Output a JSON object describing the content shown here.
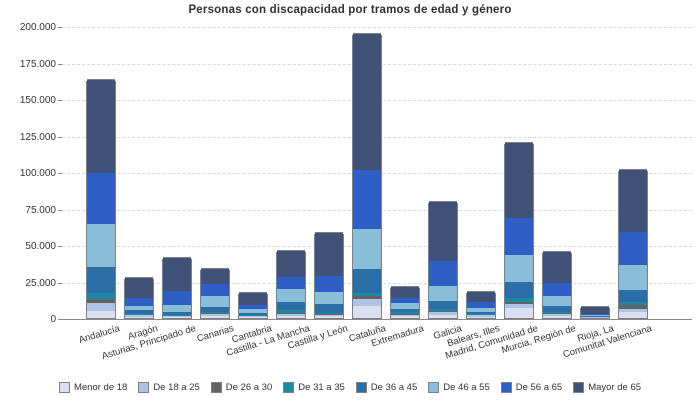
{
  "title": "Personas con discapacidad por tramos de edad y género",
  "chart_data": {
    "type": "bar",
    "stacked": true,
    "title": "Personas con discapacidad por tramos de edad y género",
    "categories": [
      "Andalucía",
      "Aragón",
      "Asturias, Principado de",
      "Canarias",
      "Cantabria",
      "Castilla - La Mancha",
      "Castilla y León",
      "Cataluña",
      "Extremadura",
      "Galicia",
      "Balears, Illes",
      "Madrid, Comunidad de",
      "Murcia, Región de",
      "Rioja, La",
      "Comunitat Valenciana"
    ],
    "series": [
      {
        "name": "Menor de 18",
        "color": "#dbdff1",
        "values": [
          4800,
          1000,
          700,
          1700,
          700,
          1500,
          1200,
          8000,
          1200,
          2100,
          1000,
          7100,
          1400,
          300,
          3900
        ]
      },
      {
        "name": "De 18 a 25",
        "color": "#afc4e4",
        "values": [
          5500,
          1000,
          500,
          1300,
          500,
          1500,
          1000,
          5000,
          1000,
          1700,
          800,
          2700,
          1300,
          300,
          2300
        ]
      },
      {
        "name": "De 26 a 30",
        "color": "#636363",
        "values": [
          2700,
          400,
          300,
          500,
          300,
          700,
          400,
          1900,
          500,
          1000,
          300,
          1400,
          600,
          150,
          2700
        ]
      },
      {
        "name": "De 31 a 35",
        "color": "#1e87a5",
        "values": [
          4100,
          600,
          400,
          900,
          400,
          2000,
          600,
          2300,
          1400,
          1100,
          400,
          2300,
          1000,
          150,
          1900
        ]
      },
      {
        "name": "De 36 a 45",
        "color": "#2b6da5",
        "values": [
          17600,
          2400,
          2300,
          3400,
          1700,
          5500,
          6400,
          16400,
          2100,
          5900,
          1400,
          11400,
          4100,
          400,
          8600
        ]
      },
      {
        "name": "De 46 a 55",
        "color": "#8abdd7",
        "values": [
          29900,
          3100,
          5000,
          7300,
          2300,
          8700,
          8400,
          27400,
          3800,
          10100,
          3200,
          18300,
          6500,
          500,
          16900
        ]
      },
      {
        "name": "De 56 a 65",
        "color": "#2f5ec4",
        "values": [
          34900,
          5100,
          9100,
          8000,
          2700,
          8000,
          10600,
          40600,
          3700,
          16900,
          4100,
          25100,
          9100,
          700,
          22400
        ]
      },
      {
        "name": "Mayor de 65",
        "color": "#405277",
        "values": [
          63800,
          14000,
          22800,
          10200,
          8500,
          17800,
          29400,
          93000,
          7300,
          40600,
          6800,
          51600,
          21000,
          4800,
          42400
        ]
      }
    ],
    "ylim": [
      0,
      200000
    ],
    "ytick_step": 25000,
    "ytick_labels": [
      "0",
      "25.000",
      "50.000",
      "75.000",
      "100.000",
      "125.000",
      "150.000",
      "175.000",
      "200.000"
    ],
    "grid": "horizontal-dashed",
    "legend_position": "bottom",
    "colors": {
      "background": "#ffffff",
      "text": "#333333",
      "axis": "#8a8a8a",
      "gridline": "#d9d9d9",
      "bar_border": "#7f7f7f"
    }
  }
}
